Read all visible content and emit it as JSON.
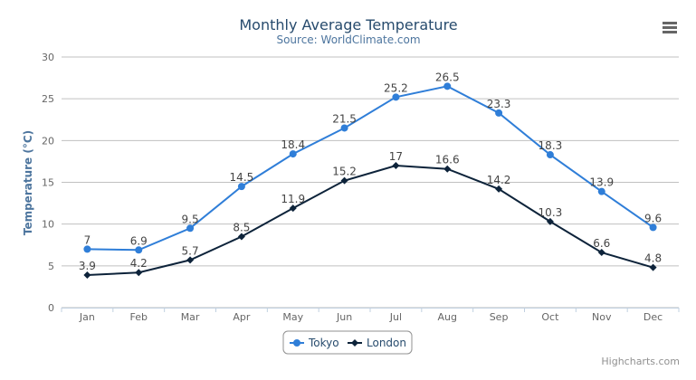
{
  "chart_data": {
    "type": "line",
    "title": "Monthly Average Temperature",
    "subtitle": "Source: WorldClimate.com",
    "xlabel": "",
    "ylabel": "Temperature (°C)",
    "ylim": [
      0,
      30
    ],
    "yticks": [
      0,
      5,
      10,
      15,
      20,
      25,
      30
    ],
    "grid": true,
    "legend_position": "bottom-center",
    "categories": [
      "Jan",
      "Feb",
      "Mar",
      "Apr",
      "May",
      "Jun",
      "Jul",
      "Aug",
      "Sep",
      "Oct",
      "Nov",
      "Dec"
    ],
    "series": [
      {
        "name": "Tokyo",
        "color": "#2f7ed8",
        "marker": "circle",
        "values": [
          7.0,
          6.9,
          9.5,
          14.5,
          18.4,
          21.5,
          25.2,
          26.5,
          23.3,
          18.3,
          13.9,
          9.6
        ]
      },
      {
        "name": "London",
        "color": "#0d233a",
        "marker": "diamond",
        "values": [
          3.9,
          4.2,
          5.7,
          8.5,
          11.9,
          15.2,
          17.0,
          16.6,
          14.2,
          10.3,
          6.6,
          4.8
        ]
      }
    ],
    "credits": "Highcharts.com"
  },
  "menu_icon": "hamburger-menu-icon"
}
